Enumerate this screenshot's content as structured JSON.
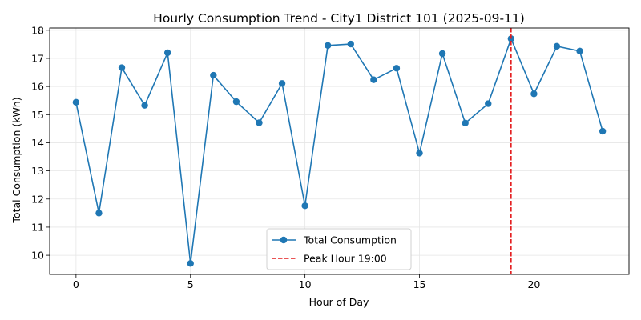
{
  "chart_data": {
    "type": "line",
    "title": "Hourly Consumption Trend - City1 District 101 (2025-09-11)",
    "xlabel": "Hour of Day",
    "ylabel": "Total Consumption (kWh)",
    "xlim": [
      -1.15,
      24.15
    ],
    "ylim": [
      9.32,
      18.08
    ],
    "xticks": [
      0,
      5,
      10,
      15,
      20
    ],
    "yticks": [
      10,
      11,
      12,
      13,
      14,
      15,
      16,
      17,
      18
    ],
    "grid": true,
    "legend_position": "lower-center",
    "series": [
      {
        "name": "Total Consumption",
        "color": "#1f77b4",
        "marker": "circle",
        "x": [
          0,
          1,
          2,
          3,
          4,
          5,
          6,
          7,
          8,
          9,
          10,
          11,
          12,
          13,
          14,
          15,
          16,
          17,
          18,
          19,
          20,
          21,
          22,
          23
        ],
        "y": [
          15.44,
          11.5,
          16.67,
          15.33,
          17.2,
          9.71,
          16.4,
          15.46,
          14.71,
          16.11,
          11.76,
          17.46,
          17.51,
          16.24,
          16.65,
          13.63,
          17.17,
          14.7,
          15.39,
          17.7,
          15.74,
          17.43,
          17.26,
          14.41
        ]
      }
    ],
    "annotations": [
      {
        "type": "vline",
        "x": 19,
        "label": "Peak Hour 19:00",
        "color": "#e41a1c",
        "style": "dashed"
      }
    ]
  }
}
